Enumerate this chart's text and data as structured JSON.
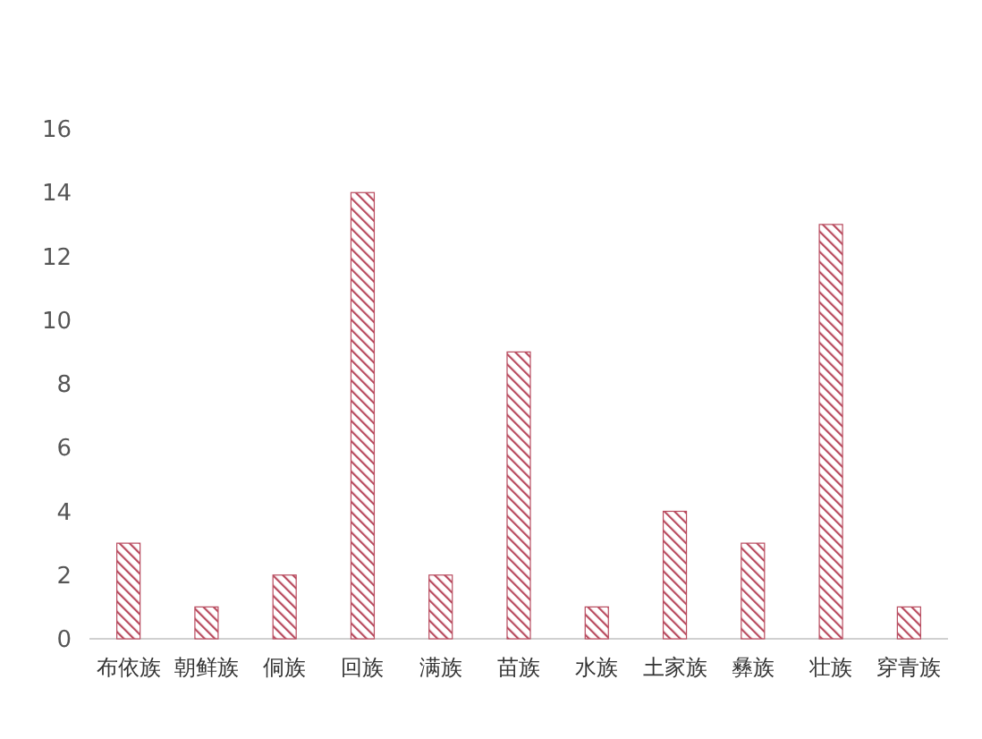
{
  "chart_data": {
    "type": "bar",
    "categories": [
      "布依族",
      "朝鲜族",
      "侗族",
      "回族",
      "满族",
      "苗族",
      "水族",
      "土家族",
      "彝族",
      "壮族",
      "穿青族"
    ],
    "values": [
      3,
      1,
      2,
      14,
      2,
      9,
      1,
      4,
      3,
      13,
      1
    ],
    "color": "#b84a5e",
    "ylim": [
      0,
      16
    ],
    "yticks": [
      0,
      2,
      4,
      6,
      8,
      10,
      12,
      14,
      16
    ],
    "grid": false
  }
}
